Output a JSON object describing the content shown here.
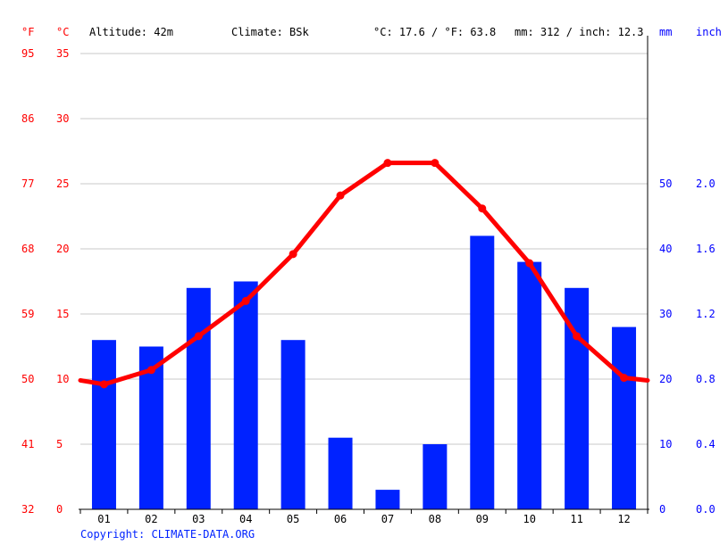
{
  "header": {
    "unit_f": "°F",
    "unit_c": "°C",
    "altitude": "Altitude: 42m",
    "climate": "Climate: BSk",
    "avg_temp": "°C: 17.6 / °F: 63.8",
    "precip_total": "mm: 312 / inch: 12.3",
    "unit_mm": "mm",
    "unit_inch": "inch"
  },
  "footer": {
    "copyright": "Copyright: CLIMATE-DATA.ORG"
  },
  "colors": {
    "temperature": "#ff0000",
    "precipitation": "#0022ff",
    "grid": "#c8c8c8",
    "axis": "#000000"
  },
  "chart_data": {
    "type": "bar",
    "categories": [
      "01",
      "02",
      "03",
      "04",
      "05",
      "06",
      "07",
      "08",
      "09",
      "10",
      "11",
      "12"
    ],
    "series": [
      {
        "type": "bar",
        "axis": "right",
        "values": [
          26,
          25,
          34,
          35,
          26,
          11,
          3,
          10,
          42,
          38,
          34,
          28
        ]
      },
      {
        "type": "line",
        "axis": "left",
        "values": [
          9.6,
          10.7,
          13.3,
          16.0,
          19.6,
          24.1,
          26.6,
          26.6,
          23.1,
          18.9,
          13.3,
          10.1
        ]
      }
    ],
    "y_left": {
      "ylim": [
        0,
        35
      ],
      "ticks_c": [
        "0",
        "5",
        "10",
        "15",
        "20",
        "25",
        "30",
        "35"
      ],
      "ticks_f": [
        "32",
        "41",
        "50",
        "59",
        "68",
        "77",
        "86",
        "95"
      ]
    },
    "y_right": {
      "ylim": [
        0,
        70
      ],
      "ticks_mm": [
        "0",
        "10",
        "20",
        "30",
        "40",
        "50"
      ],
      "ticks_inch": [
        "0.0",
        "0.4",
        "0.8",
        "1.2",
        "1.6",
        "2.0"
      ]
    },
    "grid": true
  }
}
